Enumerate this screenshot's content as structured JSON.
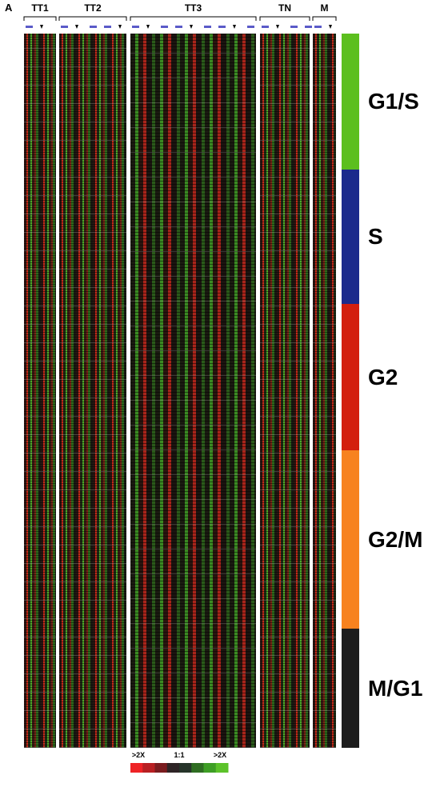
{
  "figure": {
    "panel_label": "A",
    "groups": [
      "TT1",
      "TT2",
      "TT3",
      "TN",
      "M"
    ],
    "phases": [
      {
        "label": "G1/S",
        "color": "#5cbf1e"
      },
      {
        "label": "S",
        "color": "#1b2a8c"
      },
      {
        "label": "G2",
        "color": "#d31f0e"
      },
      {
        "label": "G2/M",
        "color": "#f7821f"
      },
      {
        "label": "M/G1",
        "color": "#1d1d1d"
      }
    ],
    "scale": {
      "labels": [
        ">2X",
        "1:1",
        ">2X"
      ],
      "colors": [
        "#ee2326",
        "#b81f22",
        "#7a1c1f",
        "#2e2426",
        "#26342a",
        "#2f6d22",
        "#3e9e25",
        "#5cc22a"
      ]
    }
  }
}
